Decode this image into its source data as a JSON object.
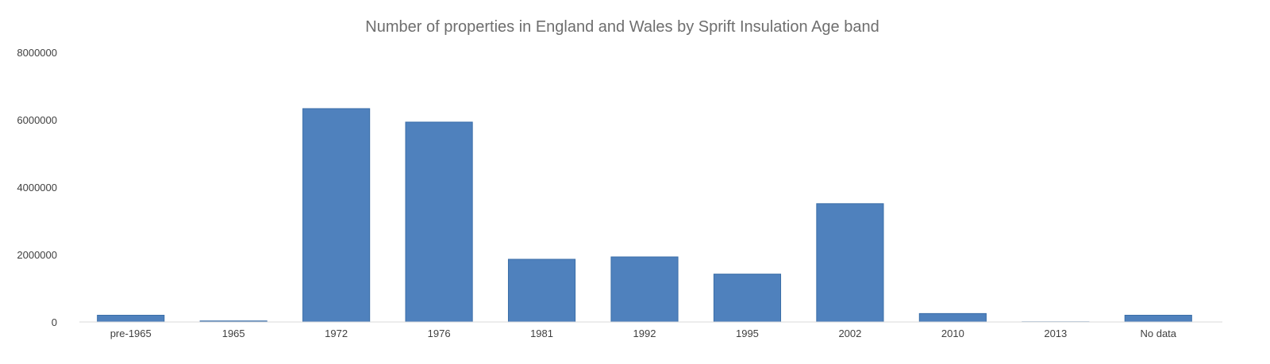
{
  "chart_data": {
    "type": "bar",
    "title": "Number of properties in England and Wales by Sprift Insulation Age band",
    "xlabel": "",
    "ylabel": "",
    "categories": [
      "pre-1965",
      "1965",
      "1972",
      "1976",
      "1981",
      "1992",
      "1995",
      "2002",
      "2010",
      "2013",
      "No data"
    ],
    "values": [
      200000,
      30000,
      6330000,
      5930000,
      1860000,
      1930000,
      1420000,
      3510000,
      250000,
      5000,
      200000
    ],
    "ylim": [
      0,
      8000000
    ],
    "yticks": [
      "0",
      "2000000",
      "4000000",
      "6000000",
      "8000000"
    ],
    "grid": false,
    "legend": "none",
    "bar_color": "#4f81bd",
    "bar_edge_color": "#3a6ea8"
  }
}
